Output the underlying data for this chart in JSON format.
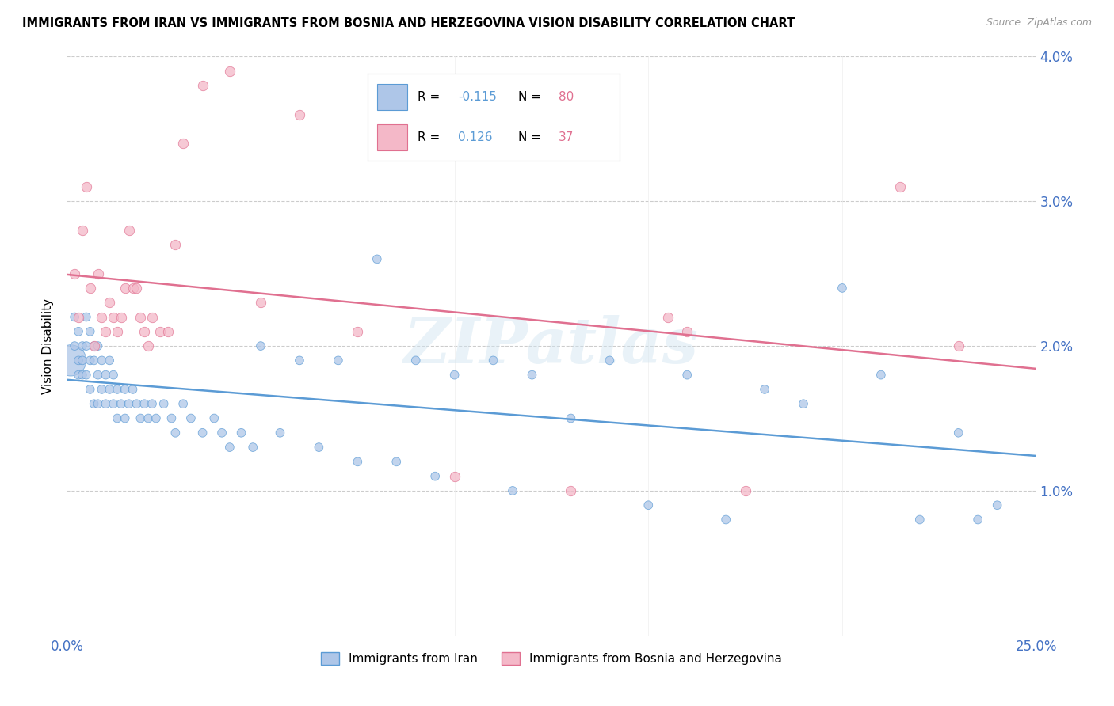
{
  "title": "IMMIGRANTS FROM IRAN VS IMMIGRANTS FROM BOSNIA AND HERZEGOVINA VISION DISABILITY CORRELATION CHART",
  "source": "Source: ZipAtlas.com",
  "ylabel": "Vision Disability",
  "iran_R": -0.115,
  "iran_N": 80,
  "bosnia_R": 0.126,
  "bosnia_N": 37,
  "iran_color": "#aec6e8",
  "iran_edge_color": "#5b9bd5",
  "bosnia_color": "#f4b8c8",
  "bosnia_edge_color": "#e07090",
  "legend_label_iran": "Immigrants from Iran",
  "legend_label_bosnia": "Immigrants from Bosnia and Herzegovina",
  "watermark": "ZIPatlas",
  "xlim": [
    0.0,
    0.25
  ],
  "ylim": [
    0.0,
    0.04
  ],
  "iran_x": [
    0.001,
    0.002,
    0.002,
    0.003,
    0.003,
    0.003,
    0.004,
    0.004,
    0.004,
    0.005,
    0.005,
    0.005,
    0.006,
    0.006,
    0.006,
    0.007,
    0.007,
    0.007,
    0.008,
    0.008,
    0.008,
    0.009,
    0.009,
    0.01,
    0.01,
    0.011,
    0.011,
    0.012,
    0.012,
    0.013,
    0.013,
    0.014,
    0.015,
    0.015,
    0.016,
    0.017,
    0.018,
    0.019,
    0.02,
    0.021,
    0.022,
    0.023,
    0.025,
    0.027,
    0.028,
    0.03,
    0.032,
    0.035,
    0.038,
    0.04,
    0.042,
    0.045,
    0.048,
    0.05,
    0.055,
    0.06,
    0.065,
    0.07,
    0.075,
    0.08,
    0.085,
    0.09,
    0.095,
    0.1,
    0.11,
    0.115,
    0.12,
    0.13,
    0.14,
    0.15,
    0.16,
    0.17,
    0.18,
    0.19,
    0.2,
    0.21,
    0.22,
    0.23,
    0.235,
    0.24
  ],
  "iran_y": [
    0.019,
    0.022,
    0.02,
    0.021,
    0.019,
    0.018,
    0.02,
    0.019,
    0.018,
    0.022,
    0.02,
    0.018,
    0.021,
    0.019,
    0.017,
    0.02,
    0.019,
    0.016,
    0.02,
    0.018,
    0.016,
    0.019,
    0.017,
    0.018,
    0.016,
    0.019,
    0.017,
    0.018,
    0.016,
    0.017,
    0.015,
    0.016,
    0.017,
    0.015,
    0.016,
    0.017,
    0.016,
    0.015,
    0.016,
    0.015,
    0.016,
    0.015,
    0.016,
    0.015,
    0.014,
    0.016,
    0.015,
    0.014,
    0.015,
    0.014,
    0.013,
    0.014,
    0.013,
    0.02,
    0.014,
    0.019,
    0.013,
    0.019,
    0.012,
    0.026,
    0.012,
    0.019,
    0.011,
    0.018,
    0.019,
    0.01,
    0.018,
    0.015,
    0.019,
    0.009,
    0.018,
    0.008,
    0.017,
    0.016,
    0.024,
    0.018,
    0.008,
    0.014,
    0.008,
    0.009
  ],
  "iran_size": [
    800,
    60,
    60,
    60,
    60,
    60,
    60,
    60,
    60,
    60,
    60,
    60,
    60,
    60,
    60,
    60,
    60,
    60,
    60,
    60,
    60,
    60,
    60,
    60,
    60,
    60,
    60,
    60,
    60,
    60,
    60,
    60,
    60,
    60,
    60,
    60,
    60,
    60,
    60,
    60,
    60,
    60,
    60,
    60,
    60,
    60,
    60,
    60,
    60,
    60,
    60,
    60,
    60,
    60,
    60,
    60,
    60,
    60,
    60,
    60,
    60,
    60,
    60,
    60,
    60,
    60,
    60,
    60,
    60,
    60,
    60,
    60,
    60,
    60,
    60,
    60,
    60,
    60,
    60,
    60
  ],
  "bosnia_x": [
    0.002,
    0.003,
    0.004,
    0.005,
    0.006,
    0.007,
    0.008,
    0.009,
    0.01,
    0.011,
    0.012,
    0.013,
    0.014,
    0.015,
    0.016,
    0.017,
    0.018,
    0.019,
    0.02,
    0.021,
    0.022,
    0.024,
    0.026,
    0.028,
    0.03,
    0.035,
    0.042,
    0.05,
    0.06,
    0.075,
    0.1,
    0.13,
    0.155,
    0.16,
    0.175,
    0.215,
    0.23
  ],
  "bosnia_y": [
    0.025,
    0.022,
    0.028,
    0.031,
    0.024,
    0.02,
    0.025,
    0.022,
    0.021,
    0.023,
    0.022,
    0.021,
    0.022,
    0.024,
    0.028,
    0.024,
    0.024,
    0.022,
    0.021,
    0.02,
    0.022,
    0.021,
    0.021,
    0.027,
    0.034,
    0.038,
    0.039,
    0.023,
    0.036,
    0.021,
    0.011,
    0.01,
    0.022,
    0.021,
    0.01,
    0.031,
    0.02
  ]
}
